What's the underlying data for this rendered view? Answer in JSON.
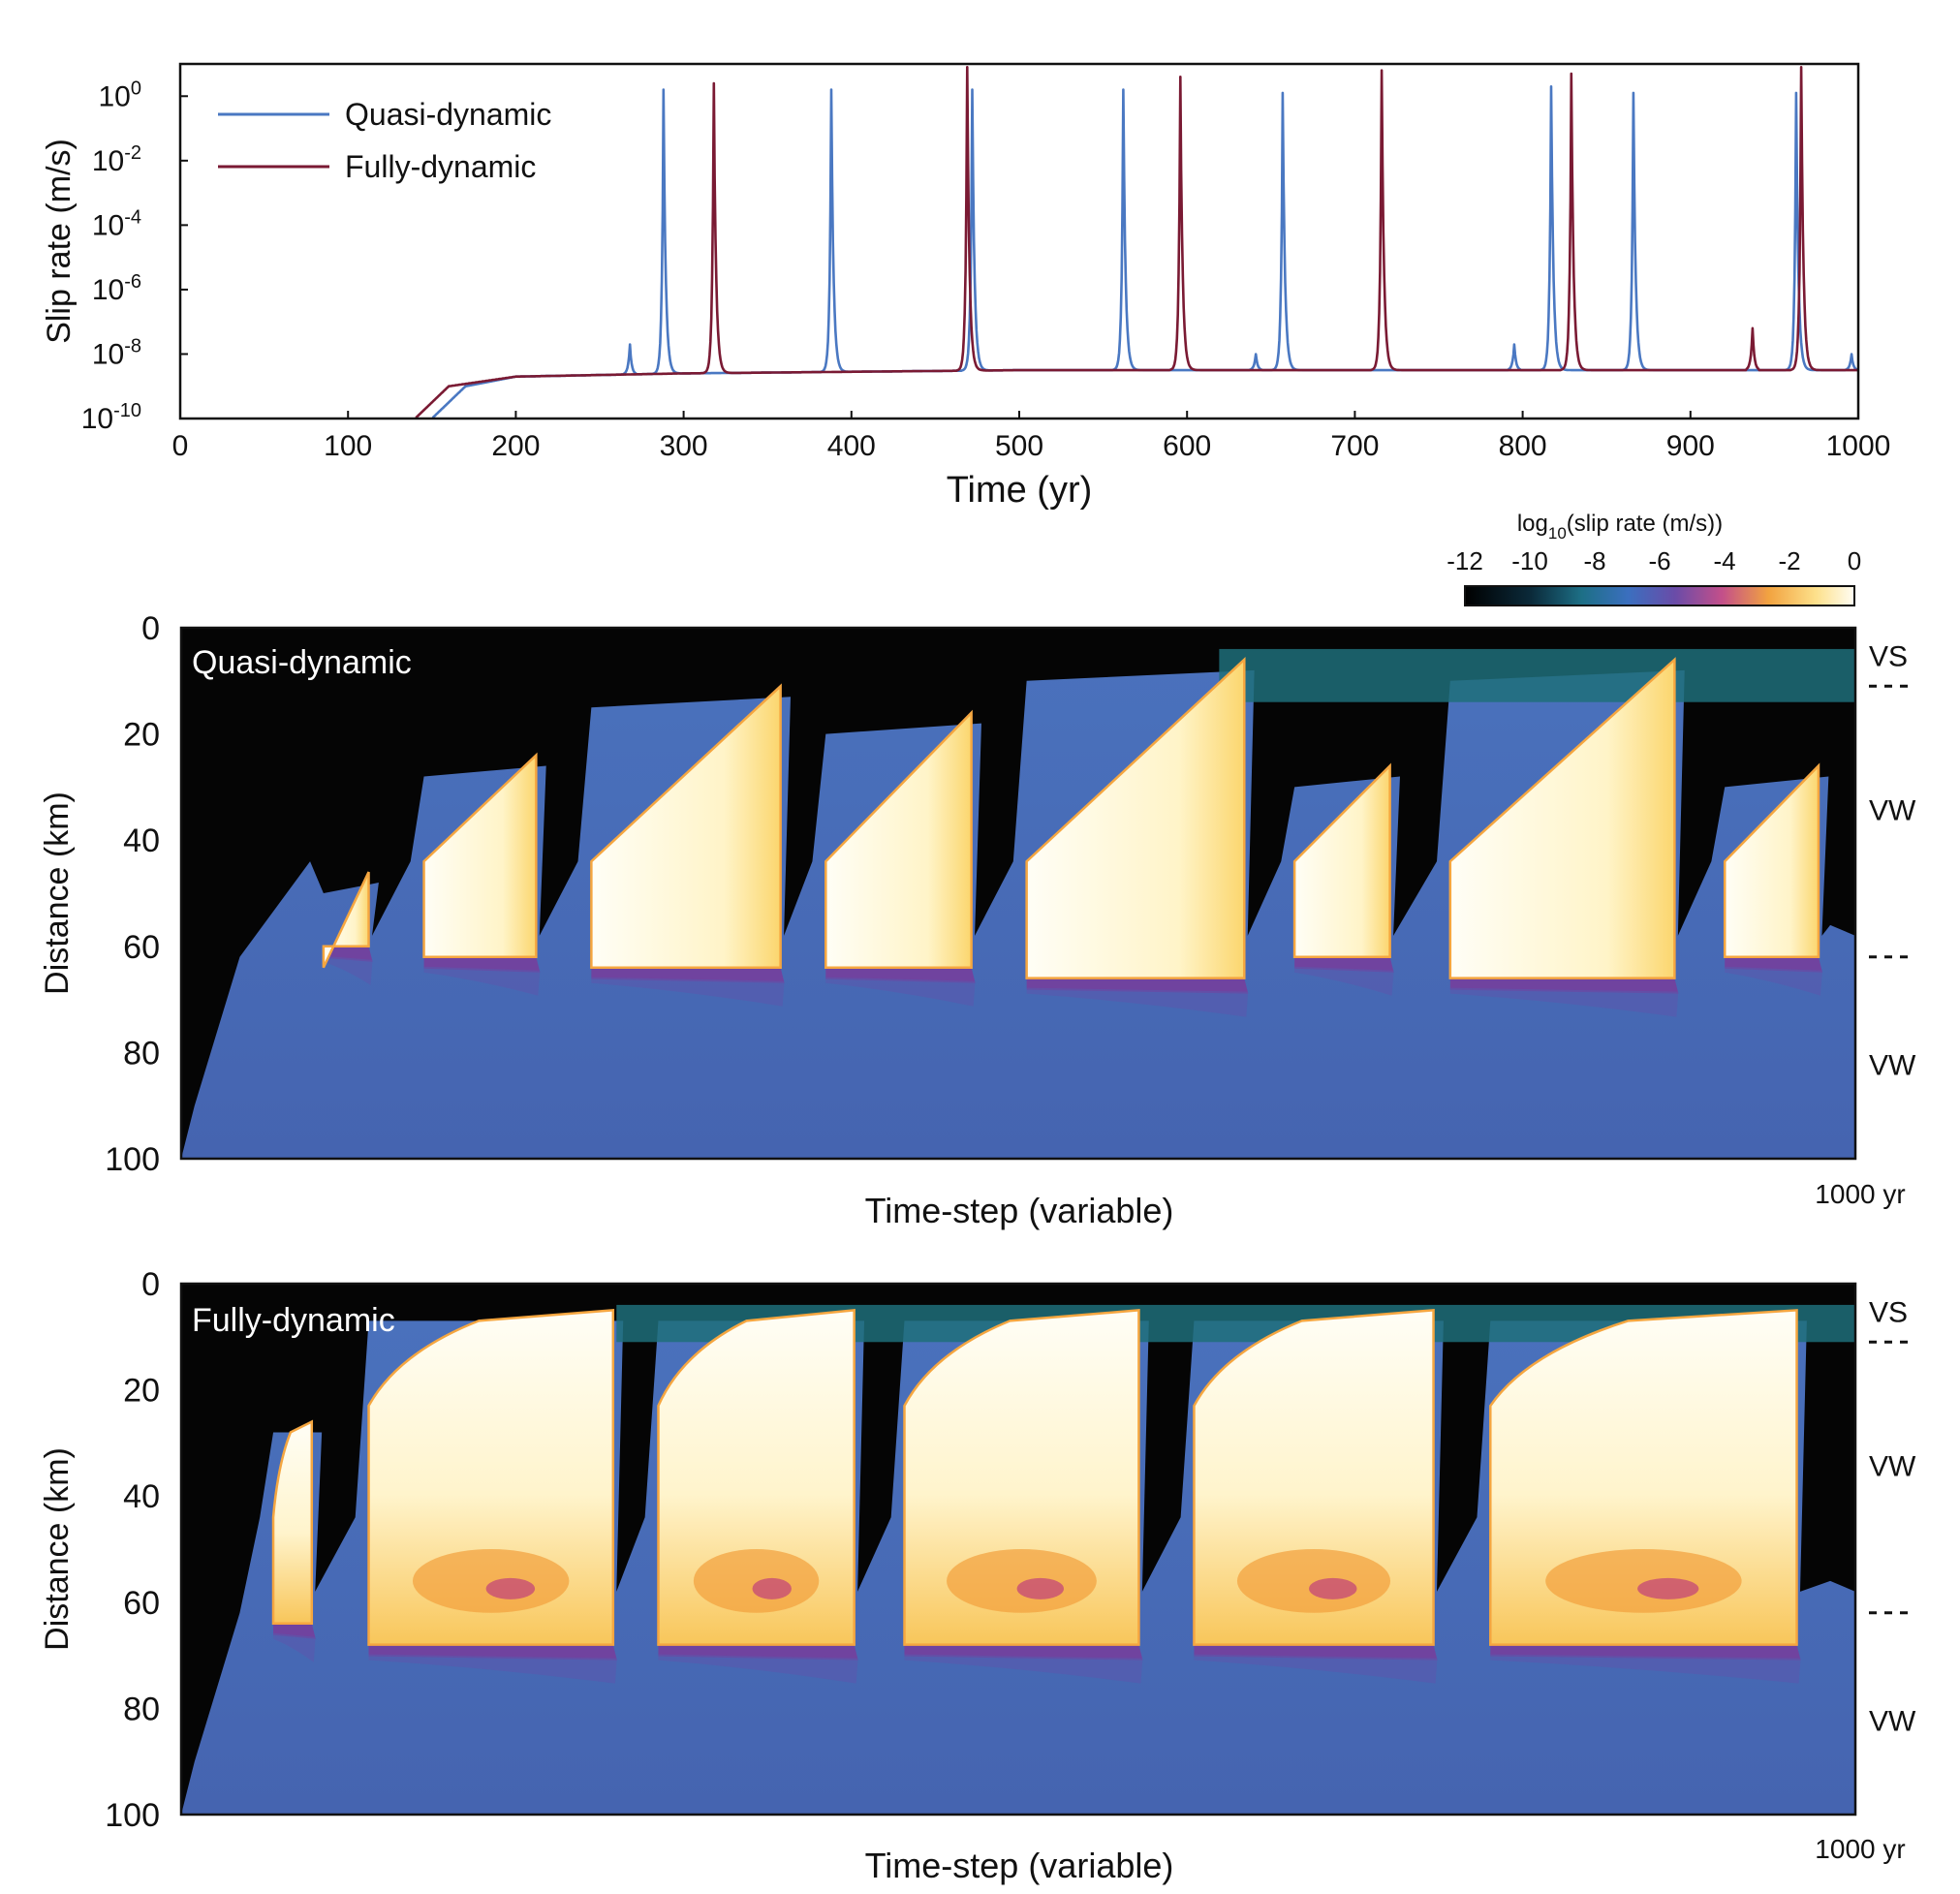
{
  "colors": {
    "quasi": "#4a78c2",
    "fully": "#7a1a33",
    "background_slow": "#4a6fb8",
    "locked": "#050505",
    "vs_zone": "#1e6f7a",
    "rupture": "#fff8dc"
  },
  "chart_data": [
    {
      "type": "line",
      "xlabel": "Time (yr)",
      "ylabel": "Slip rate (m/s)",
      "xlim": [
        0,
        1000
      ],
      "ylim_log10": [
        -10,
        1
      ],
      "x_ticks": [
        "0",
        "100",
        "200",
        "300",
        "400",
        "500",
        "600",
        "700",
        "800",
        "900",
        "1000"
      ],
      "y_tick_base": "10",
      "y_tick_exponents": [
        "0",
        "-2",
        "-4",
        "-6",
        "-8",
        "-10"
      ],
      "scale": "log",
      "legend_position": "top-left",
      "series": [
        {
          "name": "Quasi-dynamic",
          "color": "#4a78c2",
          "baseline_log10": [
            [
              150,
              -10
            ],
            [
              170,
              -9.0
            ],
            [
              200,
              -8.7
            ],
            [
              300,
              -8.6
            ],
            [
              500,
              -8.5
            ],
            [
              1000,
              -8.5
            ]
          ],
          "peak_years": [
            288,
            388,
            472,
            562,
            657,
            817,
            866,
            963
          ],
          "peak_log10": [
            0.2,
            0.2,
            0.2,
            0.2,
            0.1,
            0.3,
            0.1,
            0.1
          ],
          "minor_peak_years": [
            268,
            641,
            795,
            996
          ],
          "minor_peak_log10": [
            -7.7,
            -8.0,
            -7.7,
            -8.0
          ]
        },
        {
          "name": "Fully-dynamic",
          "color": "#7a1a33",
          "baseline_log10": [
            [
              140,
              -10
            ],
            [
              160,
              -9.0
            ],
            [
              200,
              -8.7
            ],
            [
              300,
              -8.6
            ],
            [
              500,
              -8.5
            ],
            [
              1000,
              -8.5
            ]
          ],
          "peak_years": [
            318,
            469,
            596,
            716,
            829,
            966
          ],
          "peak_log10": [
            0.4,
            0.9,
            0.6,
            0.8,
            0.7,
            0.9
          ],
          "minor_peak_years": [
            937
          ],
          "minor_peak_log10": [
            -7.2
          ]
        }
      ]
    },
    {
      "type": "heatmap",
      "label": "Quasi-dynamic",
      "xlabel": "Time-step (variable)",
      "ylabel": "Distance (km)",
      "y_ticks": [
        "0",
        "20",
        "40",
        "60",
        "80",
        "100"
      ],
      "end_label": "1000 yr",
      "zone_labels": [
        "VS",
        "VW",
        "VW"
      ],
      "colorbar": {
        "title_main": "log",
        "title_sub": "10",
        "title_rest": "(slip rate (m/s))",
        "ticks": [
          "-12",
          "-10",
          "-8",
          "-6",
          "-4",
          "-2",
          "0"
        ],
        "range": [
          -12,
          0
        ]
      },
      "events": [
        {
          "start": 0.085,
          "end": 0.112,
          "top_km": 46,
          "bottom_km": 60
        },
        {
          "start": 0.145,
          "end": 0.212,
          "top_km": 24,
          "bottom_km": 62
        },
        {
          "start": 0.245,
          "end": 0.358,
          "top_km": 11,
          "bottom_km": 64
        },
        {
          "start": 0.385,
          "end": 0.472,
          "top_km": 16,
          "bottom_km": 64
        },
        {
          "start": 0.505,
          "end": 0.635,
          "top_km": 6,
          "bottom_km": 66
        },
        {
          "start": 0.665,
          "end": 0.722,
          "top_km": 26,
          "bottom_km": 62
        },
        {
          "start": 0.758,
          "end": 0.892,
          "top_km": 6,
          "bottom_km": 66
        },
        {
          "start": 0.922,
          "end": 0.978,
          "top_km": 26,
          "bottom_km": 62
        }
      ]
    },
    {
      "type": "heatmap",
      "label": "Fully-dynamic",
      "xlabel": "Time-step (variable)",
      "ylabel": "Distance (km)",
      "y_ticks": [
        "0",
        "20",
        "40",
        "60",
        "80",
        "100"
      ],
      "end_label": "1000 yr",
      "zone_labels": [
        "VS",
        "VW",
        "VW"
      ],
      "events": [
        {
          "start": 0.055,
          "end": 0.078,
          "top_km": 26,
          "bottom_km": 64
        },
        {
          "start": 0.112,
          "end": 0.258,
          "top_km": 5,
          "bottom_km": 68
        },
        {
          "start": 0.285,
          "end": 0.402,
          "top_km": 5,
          "bottom_km": 68
        },
        {
          "start": 0.432,
          "end": 0.572,
          "top_km": 5,
          "bottom_km": 68
        },
        {
          "start": 0.605,
          "end": 0.748,
          "top_km": 5,
          "bottom_km": 68
        },
        {
          "start": 0.782,
          "end": 0.965,
          "top_km": 5,
          "bottom_km": 68
        }
      ]
    }
  ]
}
